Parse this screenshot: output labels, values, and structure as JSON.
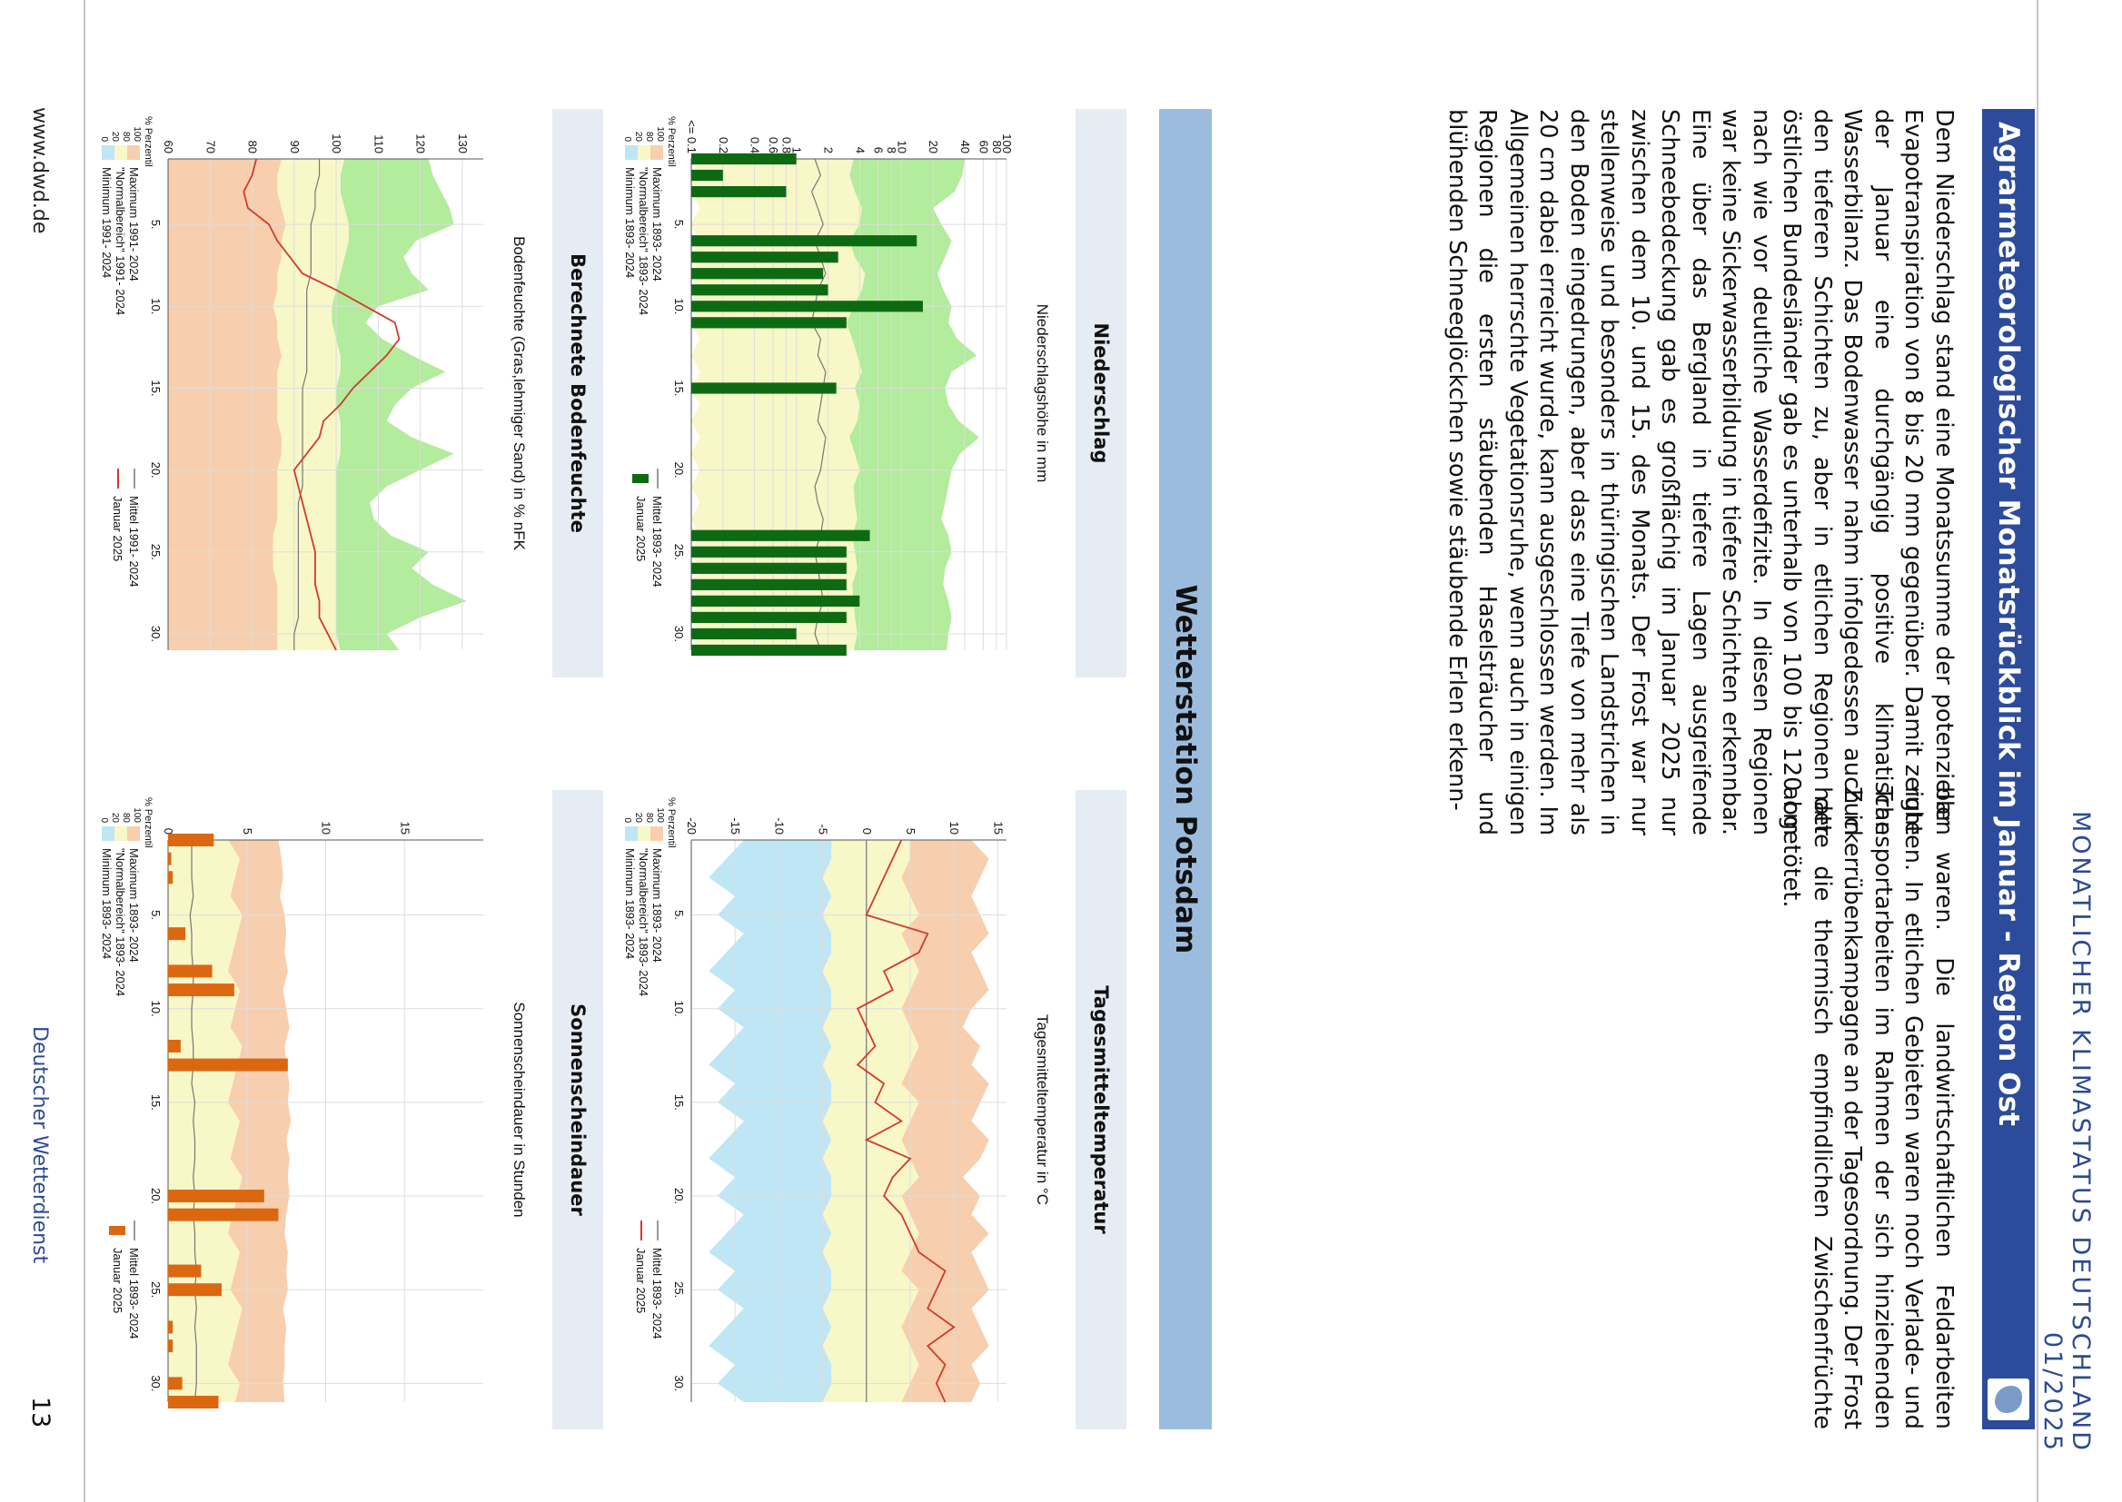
{
  "running_head": "MONATLICHER KLIMASTATUS DEUTSCHLAND   01/2025",
  "title": "Agrarmeteorologischer Monatsrückblick im Januar - Region Ost",
  "paragraph_col1": "Dem Niederschlag stand eine Monatssumme der potenziellen Evapotranspiration von 8 bis 20 mm gegenüber. Damit zeigte der Januar eine durchgängig positive klimatische Wasserbilanz. Das Bodenwasser nahm infolgedessen auch in den tieferen Schichten zu, aber in etlichen Regionen der östlichen Bundesländer gab es unterhalb von 100 bis 120 cm nach wie vor deutliche Wasserdefizite. In diesen Regionen war keine Sickerwasserbildung in tiefere Schichten erkennbar. Eine über das Bergland in tiefere Lagen ausgreifende Schneebedeckung gab es großflächig im Januar 2025 nur zwischen dem 10. und 15. des Monats. Der Frost war nur stellenweise und besonders in thüringischen Landstrichen in den Boden eingedrungen, aber dass eine Tiefe von mehr als 20 cm dabei erreicht wurde, kann ausgeschlossen werden. Im Allgemeinen herrschte Vegetationsruhe, wenn auch in einigen Regionen die ersten stäubenden Haselsträucher und blühenden Schneeglöckchen sowie stäubende Erlen erkenn-",
  "paragraph_col2": "bar waren. Die landwirtschaftlichen Feldarbeiten ruhten. In etlichen Gebieten waren noch Verlade- und Transportarbeiten im Rahmen der sich hinziehenden Zuckerrübenkampagne an der Tagesordnung. Der Frost hatte die thermisch empfindlichen Zwischenfrüchte abgetötet.",
  "station_title": "Wetterstation Potsdam",
  "footer": {
    "url": "www.dwd.de",
    "org": "Deutscher Wetterdienst",
    "page": "13"
  },
  "colors": {
    "brand": "#2c4b9b",
    "station_bar": "#9bbcdd",
    "header_bg": "#e6ecf4",
    "max_band": "#f7cfae",
    "normal_band": "#f8f7c8",
    "min_band_temp": "#bfe6f4",
    "wet_band": "#b2ec9c",
    "temp_line": "#d33a2c",
    "sun_bar": "#dc6711",
    "precip_bar": "#0e6a12"
  },
  "charts": [
    {
      "header": "Tagesmitteltemperatur",
      "title": "Tagesmitteltemperatur in °C",
      "legend_band_title": "% Perzentil",
      "legend_band_ticks": [
        "100",
        "80",
        "20",
        "0"
      ],
      "legend_text": [
        "Maximum 1893- 2024",
        "\"Normalbereich\" 1893- 2024",
        "Minimum 1893- 2024"
      ],
      "legend_lines": [
        "Mittel 1893- 2024",
        "Januar 2025"
      ]
    },
    {
      "header": "Niederschlag",
      "title": "Niederschlagshöhe in mm",
      "legend_band_title": "% Perzentil",
      "legend_band_ticks": [
        "100",
        "80",
        "20",
        "0"
      ],
      "legend_text": [
        "Maximum 1893- 2024",
        "\"Normalbereich\" 1893- 2024",
        "Minimum 1893- 2024"
      ],
      "legend_lines": [
        "Mittel 1893- 2024",
        "Januar 2025"
      ]
    },
    {
      "header": "Sonnenscheindauer",
      "title": "Sonnenscheindauer in Stunden",
      "legend_band_title": "% Perzentil",
      "legend_band_ticks": [
        "100",
        "80",
        "20",
        "0"
      ],
      "legend_text": [
        "Maximum 1893- 2024",
        "\"Normalbereich\" 1893- 2024",
        "Minimum 1893- 2024"
      ],
      "legend_lines": [
        "Mittel 1893- 2024",
        "Januar 2025"
      ]
    },
    {
      "header": "Berechnete Bodenfeuchte",
      "title": "Bodenfeuchte (Gras,lehmiger Sand) in % nFK",
      "legend_band_title": "% Perzentil",
      "legend_band_ticks": [
        "100",
        "80",
        "20",
        "0"
      ],
      "legend_text": [
        "Maximum 1991- 2024",
        "\"Normalbereich\" 1991- 2024",
        "Minimum 1991- 2024"
      ],
      "legend_lines": [
        "Mittel 1991- 2024",
        "Januar 2025"
      ]
    }
  ],
  "chart_data": [
    {
      "type": "area",
      "title": "Tagesmitteltemperatur in °C",
      "x_ticks": [
        "5.",
        "10.",
        "15.",
        "20.",
        "25.",
        "30."
      ],
      "y_ticks": [
        15,
        10,
        5,
        0,
        -5,
        -10,
        -15,
        -20
      ],
      "ylim": [
        -20,
        16
      ],
      "xlim": [
        1,
        31
      ],
      "series": [
        {
          "name": "Maximum 1893- 2024",
          "values": [
            12,
            14,
            13,
            12,
            13,
            14,
            12,
            13,
            14,
            12,
            11,
            13,
            12,
            14,
            13,
            12,
            14,
            13,
            11,
            13,
            12,
            14,
            12,
            13,
            14,
            12,
            13,
            14,
            12,
            13,
            12
          ]
        },
        {
          "name": "\"Normalbereich\" 1893- 2024",
          "values": [
            5,
            5,
            4,
            5,
            6,
            4,
            5,
            6,
            5,
            4,
            5,
            6,
            5,
            4,
            6,
            5,
            4,
            5,
            6,
            4,
            5,
            6,
            5,
            4,
            6,
            5,
            4,
            5,
            6,
            5,
            4
          ]
        },
        {
          "name": "Minimum 1893- 2024",
          "values": [
            -4,
            -4,
            -5,
            -4,
            -5,
            -4,
            -4,
            -5,
            -4,
            -4,
            -5,
            -4,
            -5,
            -4,
            -4,
            -5,
            -4,
            -5,
            -4,
            -4,
            -5,
            -4,
            -5,
            -4,
            -4,
            -5,
            -4,
            -5,
            -4,
            -4,
            -5
          ]
        },
        {
          "name": "Mittel 1893- 2024",
          "values": [
            0,
            0,
            0,
            0,
            0,
            0,
            0,
            0,
            0,
            0,
            0,
            0,
            0,
            0,
            0,
            0,
            0,
            0,
            0,
            0,
            0,
            0,
            0,
            0,
            0,
            0,
            0,
            0,
            0,
            0,
            0
          ]
        },
        {
          "name": "Januar 2025",
          "values": [
            4,
            3,
            2,
            1,
            0,
            7,
            6,
            2,
            3,
            -1,
            0,
            1,
            -1,
            2,
            1,
            4,
            0,
            5,
            3,
            2,
            4,
            5,
            6,
            9,
            8,
            7,
            10,
            7,
            9,
            8,
            9
          ]
        }
      ]
    },
    {
      "type": "bar",
      "title": "Niederschlagshöhe in mm",
      "yscale": "log",
      "x_ticks": [
        "5.",
        "10.",
        "15.",
        "20.",
        "25.",
        "30."
      ],
      "y_ticks": [
        "<= 0.1",
        "0.2",
        "0.4",
        "0.6",
        "0.8",
        "1",
        "2",
        "4",
        "6",
        "8",
        "10",
        "20",
        "40",
        "60",
        "80",
        "100"
      ],
      "ylim": [
        0.1,
        100
      ],
      "xlim": [
        1,
        31
      ],
      "series": [
        {
          "name": "Januar 2025",
          "values": [
            1.0,
            0.2,
            0.8,
            0,
            0,
            14,
            2.5,
            1.8,
            2.0,
            16,
            3,
            0,
            0,
            0,
            2.4,
            0,
            0,
            0,
            0,
            0,
            0,
            0,
            0,
            5,
            3,
            3,
            3,
            4,
            3,
            1,
            3
          ]
        },
        {
          "name": "Mittel 1893- 2024",
          "values": [
            1.5,
            1.7,
            1.4,
            1.6,
            1.8,
            1.5,
            1.7,
            1.9,
            1.6,
            1.5,
            1.4,
            1.7,
            1.6,
            1.9,
            1.8,
            1.7,
            1.6,
            1.9,
            1.8,
            1.7,
            1.5,
            1.6,
            1.8,
            1.7,
            1.5,
            1.6,
            1.7,
            1.8,
            1.6,
            1.5,
            1.7
          ]
        }
      ]
    },
    {
      "type": "bar",
      "title": "Sonnenscheindauer in Stunden",
      "x_ticks": [
        "5.",
        "10.",
        "15.",
        "20.",
        "25.",
        "30."
      ],
      "y_ticks": [
        0,
        5,
        10,
        15
      ],
      "ylim": [
        0,
        20
      ],
      "xlim": [
        1,
        31
      ],
      "series": [
        {
          "name": "Januar 2025",
          "values": [
            2.9,
            0.2,
            0.3,
            0,
            0,
            1.1,
            0,
            2.8,
            4.2,
            0,
            0,
            0.8,
            7.6,
            0,
            0,
            0,
            0,
            0,
            0,
            6.1,
            7.0,
            0,
            0,
            2.1,
            3.4,
            0,
            0.3,
            0.3,
            0,
            0.9,
            3.2
          ]
        },
        {
          "name": "Maximum 1893- 2024",
          "values": [
            7,
            7.2,
            7.3,
            7.1,
            7.4,
            7.5,
            7.4,
            7.6,
            7.3,
            7.5,
            7.7,
            7.4,
            7.5,
            7.7,
            7.6,
            7.8,
            7.5,
            7.7,
            7.6,
            7.7,
            7.5,
            7.4,
            7.6,
            7.5,
            7.6,
            7.3,
            7.5,
            7.4,
            7.4,
            7.3,
            7.4
          ]
        },
        {
          "name": "Mittel 1893- 2024",
          "values": [
            1.5,
            1.5,
            1.5,
            1.6,
            1.4,
            1.5,
            1.5,
            1.6,
            1.6,
            1.5,
            1.5,
            1.6,
            1.6,
            1.5,
            1.7,
            1.6,
            1.7,
            1.7,
            1.6,
            1.7,
            1.6,
            1.7,
            1.7,
            1.8,
            1.7,
            1.8,
            1.7,
            1.8,
            1.8,
            1.8,
            1.7
          ]
        }
      ]
    },
    {
      "type": "area",
      "title": "Bodenfeuchte (Gras,lehmiger Sand) in % nFK",
      "x_ticks": [
        "5.",
        "10.",
        "15.",
        "20.",
        "25.",
        "30."
      ],
      "y_ticks": [
        60,
        70,
        80,
        90,
        100,
        110,
        120,
        130
      ],
      "ylim": [
        60,
        135
      ],
      "xlim": [
        1,
        31
      ],
      "series": [
        {
          "name": "Maximum 1991- 2024",
          "values": [
            122,
            123,
            125,
            127,
            128,
            119,
            116,
            118,
            122,
            110,
            107,
            111,
            118,
            126,
            118,
            114,
            112,
            118,
            128,
            120,
            112,
            108,
            109,
            113,
            122,
            118,
            123,
            131,
            120,
            112,
            115
          ]
        },
        {
          "name": "Mittel 1991- 2024",
          "values": [
            96,
            96,
            95,
            95,
            94,
            94,
            94,
            94,
            93,
            93,
            93,
            93,
            93,
            93,
            92,
            92,
            92,
            92,
            92,
            92,
            92,
            91,
            91,
            91,
            91,
            91,
            91,
            91,
            91,
            90,
            90
          ]
        },
        {
          "name": "Januar 2025",
          "values": [
            81,
            80,
            78,
            79,
            84,
            86,
            89,
            92,
            100,
            107,
            114,
            115,
            112,
            108,
            104,
            101,
            97,
            96,
            93,
            90,
            91,
            92,
            93,
            94,
            95,
            95,
            95,
            96,
            96,
            98,
            100
          ]
        }
      ]
    }
  ]
}
